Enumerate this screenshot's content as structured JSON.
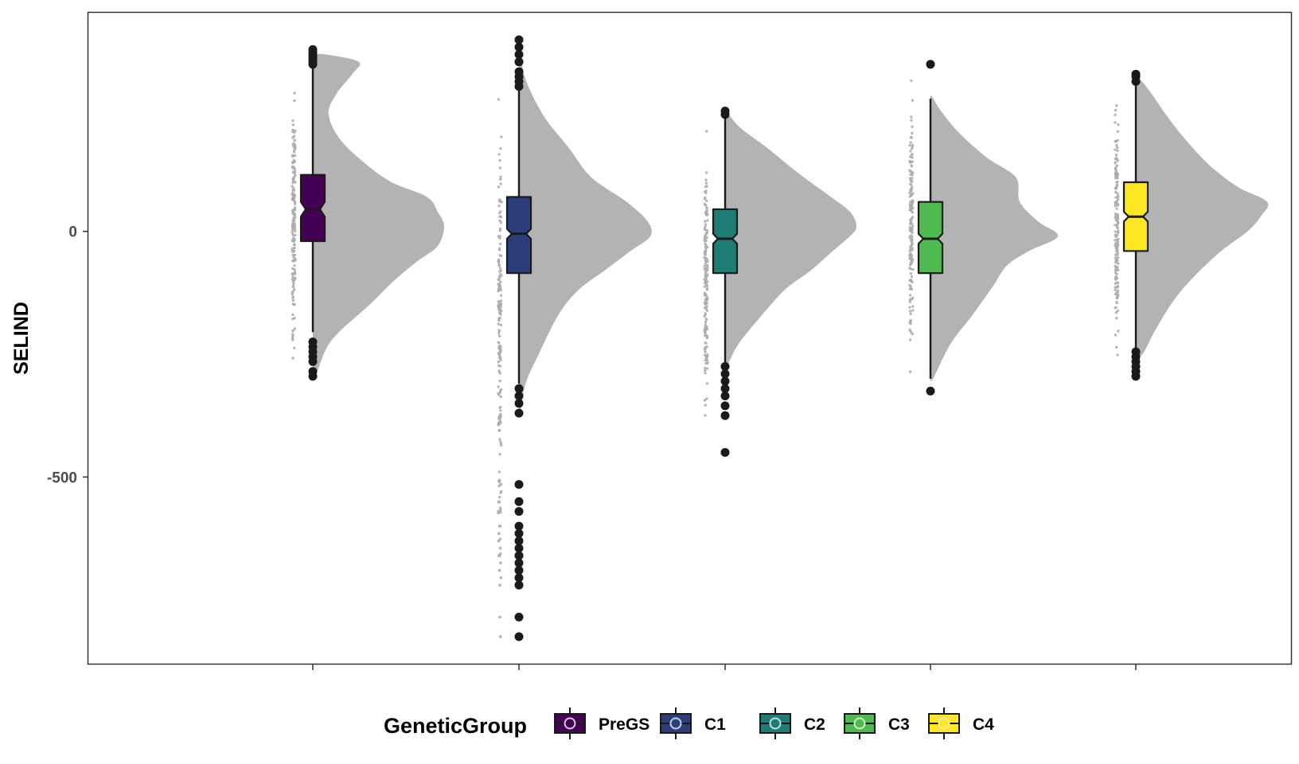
{
  "chart_data": {
    "type": "raincloud",
    "ylabel": "SELIND",
    "xlabel": "",
    "ylim": [
      -880,
      445
    ],
    "yticks": [
      0,
      -500
    ],
    "ytick_labels": [
      "0",
      "-500"
    ],
    "legend": {
      "title": "GeneticGroup",
      "position": "bottom"
    },
    "grid": false,
    "groups": [
      {
        "name": "PreGS",
        "color": "#440154",
        "ring_color": "#d9c5e0",
        "box": {
          "q1": -20,
          "median": 45,
          "q3": 115,
          "notch_low": 30,
          "notch_high": 60
        },
        "whisker": [
          -205,
          335
        ],
        "data_range": [
          -300,
          370
        ],
        "outliers": [
          -295,
          -285,
          -265,
          -255,
          -245,
          -235,
          -225,
          340,
          345,
          350,
          355,
          360,
          365,
          370
        ],
        "density": [
          [
            -295,
            0.02
          ],
          [
            -240,
            0.1
          ],
          [
            -205,
            0.2
          ],
          [
            -150,
            0.43
          ],
          [
            -100,
            0.62
          ],
          [
            -60,
            0.8
          ],
          [
            -30,
            0.95
          ],
          [
            10,
            1.0
          ],
          [
            40,
            0.95
          ],
          [
            70,
            0.87
          ],
          [
            100,
            0.6
          ],
          [
            140,
            0.39
          ],
          [
            190,
            0.2
          ],
          [
            240,
            0.12
          ],
          [
            280,
            0.18
          ],
          [
            320,
            0.3
          ],
          [
            345,
            0.35
          ],
          [
            360,
            0.1
          ]
        ]
      },
      {
        "name": "C1",
        "color": "#2c3e7a",
        "ring_color": "#c5cde6",
        "box": {
          "q1": -85,
          "median": -5,
          "q3": 70,
          "notch_low": -15,
          "notch_high": 5
        },
        "whisker": [
          -310,
          290
        ],
        "data_range": [
          -830,
          390
        ],
        "outliers": [
          -825,
          -785,
          -720,
          -705,
          -690,
          -675,
          -660,
          -645,
          -630,
          -615,
          -600,
          -570,
          -550,
          -515,
          -370,
          -350,
          -335,
          -320,
          295,
          305,
          315,
          325,
          345,
          360,
          375,
          390
        ],
        "density": [
          [
            -370,
            0.01
          ],
          [
            -310,
            0.05
          ],
          [
            -250,
            0.15
          ],
          [
            -170,
            0.3
          ],
          [
            -120,
            0.45
          ],
          [
            -80,
            0.65
          ],
          [
            -40,
            0.85
          ],
          [
            -10,
            1.0
          ],
          [
            20,
            0.98
          ],
          [
            60,
            0.82
          ],
          [
            110,
            0.55
          ],
          [
            170,
            0.38
          ],
          [
            230,
            0.2
          ],
          [
            290,
            0.08
          ],
          [
            330,
            0.03
          ],
          [
            380,
            0.01
          ]
        ]
      },
      {
        "name": "C2",
        "color": "#1f7d76",
        "ring_color": "#c4e0dd",
        "box": {
          "q1": -85,
          "median": -15,
          "q3": 45,
          "notch_low": -25,
          "notch_high": -5
        },
        "whisker": [
          -270,
          235
        ],
        "data_range": [
          -450,
          245
        ],
        "outliers": [
          -450,
          -375,
          -355,
          -335,
          -320,
          -305,
          -290,
          -275,
          238,
          245
        ],
        "density": [
          [
            -270,
            0.02
          ],
          [
            -230,
            0.1
          ],
          [
            -180,
            0.25
          ],
          [
            -120,
            0.45
          ],
          [
            -80,
            0.65
          ],
          [
            -40,
            0.82
          ],
          [
            -10,
            0.95
          ],
          [
            10,
            1.0
          ],
          [
            40,
            0.95
          ],
          [
            75,
            0.78
          ],
          [
            120,
            0.55
          ],
          [
            170,
            0.32
          ],
          [
            210,
            0.12
          ],
          [
            240,
            0.02
          ]
        ]
      },
      {
        "name": "C3",
        "color": "#4fba4f",
        "ring_color": "#cfeacd",
        "box": {
          "q1": -85,
          "median": -15,
          "q3": 60,
          "notch_low": -25,
          "notch_high": -5
        },
        "whisker": [
          -300,
          270
        ],
        "data_range": [
          -330,
          340
        ],
        "outliers": [
          -325,
          340
        ],
        "density": [
          [
            -300,
            0.02
          ],
          [
            -230,
            0.15
          ],
          [
            -170,
            0.32
          ],
          [
            -110,
            0.48
          ],
          [
            -70,
            0.58
          ],
          [
            -40,
            0.75
          ],
          [
            -10,
            0.97
          ],
          [
            20,
            0.82
          ],
          [
            60,
            0.68
          ],
          [
            110,
            0.65
          ],
          [
            150,
            0.43
          ],
          [
            200,
            0.22
          ],
          [
            245,
            0.08
          ],
          [
            275,
            0.01
          ]
        ]
      },
      {
        "name": "C4",
        "color": "#fde725",
        "ring_color": "#fdeea0",
        "box": {
          "q1": -40,
          "median": 30,
          "q3": 100,
          "notch_low": 20,
          "notch_high": 40
        },
        "whisker": [
          -240,
          300
        ],
        "data_range": [
          -295,
          320
        ],
        "outliers": [
          -295,
          -285,
          -275,
          -265,
          -255,
          -245,
          305,
          315,
          320
        ],
        "density": [
          [
            -250,
            0.05
          ],
          [
            -200,
            0.15
          ],
          [
            -140,
            0.29
          ],
          [
            -90,
            0.45
          ],
          [
            -40,
            0.65
          ],
          [
            0,
            0.85
          ],
          [
            30,
            0.95
          ],
          [
            60,
            1.0
          ],
          [
            90,
            0.78
          ],
          [
            130,
            0.58
          ],
          [
            180,
            0.4
          ],
          [
            230,
            0.25
          ],
          [
            280,
            0.12
          ],
          [
            310,
            0.03
          ]
        ]
      }
    ]
  }
}
